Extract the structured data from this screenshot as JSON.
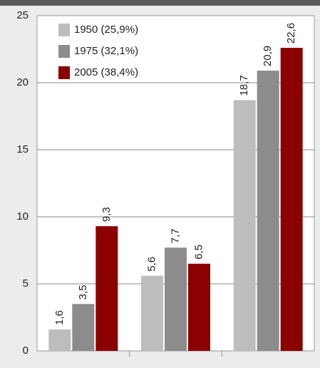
{
  "chart_data": {
    "type": "bar",
    "categories": [
      null,
      null,
      null
    ],
    "series": [
      {
        "name": "1950 (25,9%)",
        "color": "#bdbdbd",
        "values": [
          1.6,
          5.6,
          18.7
        ],
        "value_labels": [
          "1,6",
          "5,6",
          "18,7"
        ]
      },
      {
        "name": "1975 (32,1%)",
        "color": "#8c8c8c",
        "values": [
          3.5,
          7.7,
          20.9
        ],
        "value_labels": [
          "3,5",
          "7,7",
          "20,9"
        ]
      },
      {
        "name": "2005 (38,4%)",
        "color": "#8b0000",
        "values": [
          9.3,
          6.5,
          22.6
        ],
        "value_labels": [
          "9,3",
          "6,5",
          "22,6"
        ]
      }
    ],
    "ylim": [
      0,
      25
    ],
    "yticks": [
      0,
      5,
      10,
      15,
      20,
      25
    ],
    "grid": true,
    "legend": "top-left"
  }
}
